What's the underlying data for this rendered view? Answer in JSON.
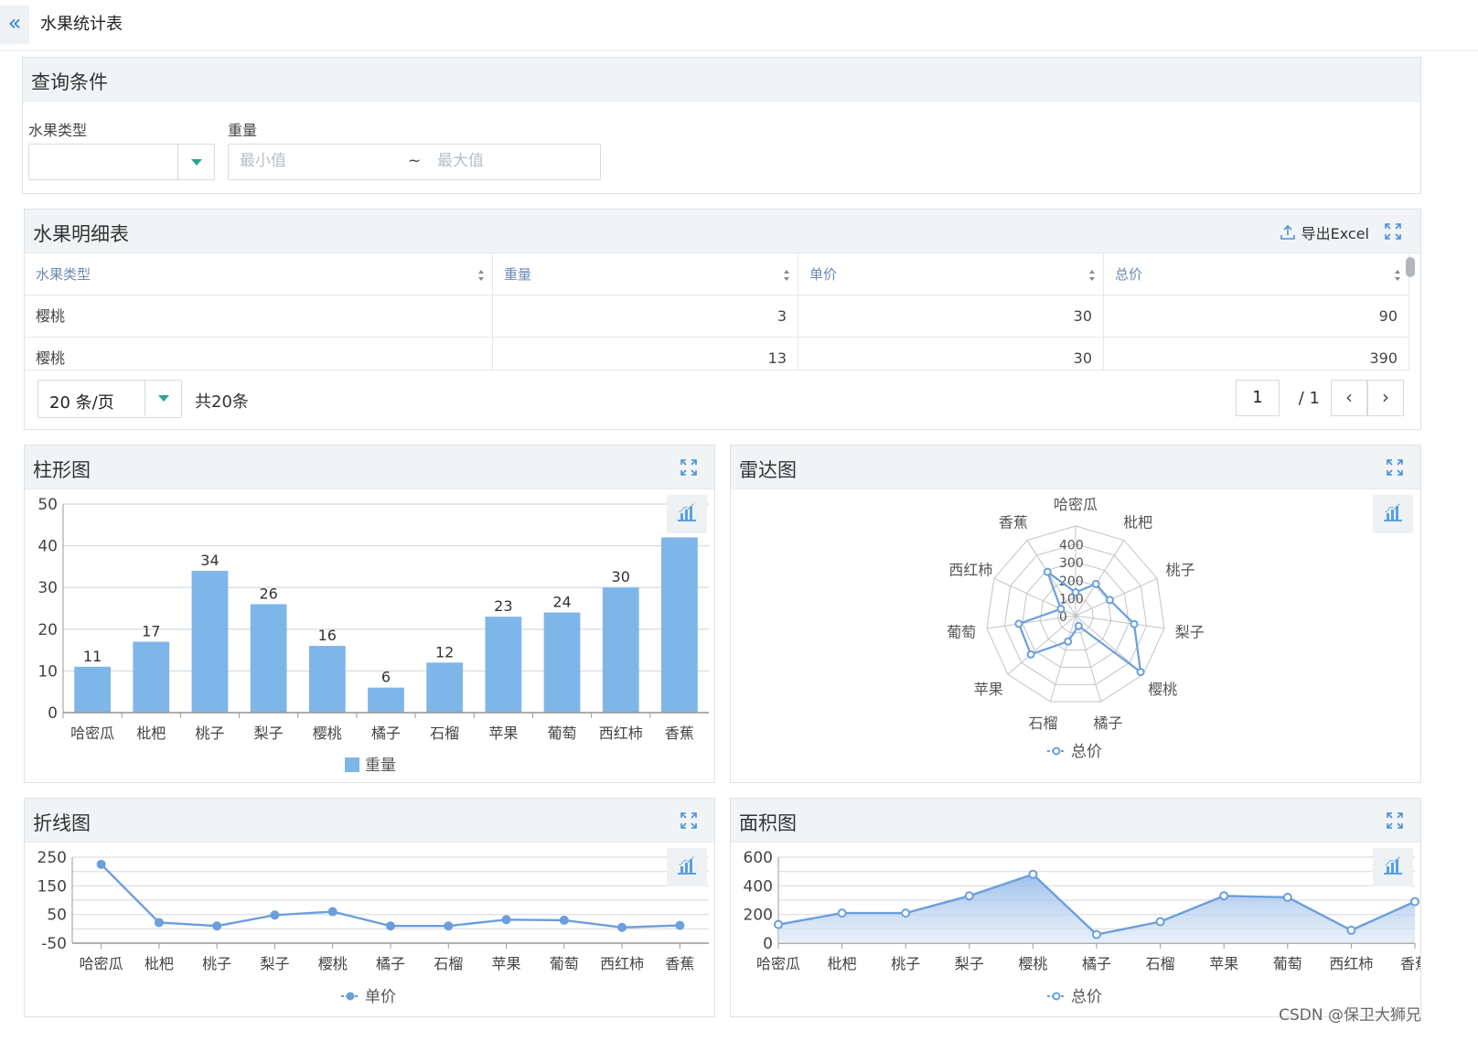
{
  "header": {
    "collapse_icon": "double-chevron-left-icon",
    "title": "水果统计表"
  },
  "query": {
    "title": "查询条件",
    "fruit_type_label": "水果类型",
    "fruit_type_value": "",
    "weight_label": "重量",
    "min_placeholder": "最小值",
    "range_separator": "~",
    "max_placeholder": "最大值"
  },
  "detail": {
    "title": "水果明细表",
    "export_label": "导出Excel",
    "columns": [
      "水果类型",
      "重量",
      "单价",
      "总价"
    ],
    "rows": [
      [
        "樱桃",
        "3",
        "30",
        "90"
      ],
      [
        "樱桃",
        "13",
        "30",
        "390"
      ]
    ],
    "page_size": "20 条/页",
    "total": "共20条",
    "current_page": "1",
    "total_pages": "/ 1"
  },
  "colors": {
    "primary": "#7eb6ea",
    "line": "#6a9fdc",
    "accent": "#2aa391",
    "grid": "#d9dde1"
  },
  "chart_data": [
    {
      "id": "bar",
      "type": "bar",
      "title": "柱形图",
      "categories": [
        "哈密瓜",
        "枇杷",
        "桃子",
        "梨子",
        "樱桃",
        "橘子",
        "石榴",
        "苹果",
        "葡萄",
        "西红柿",
        "香蕉"
      ],
      "series": [
        {
          "name": "重量",
          "values": [
            11,
            17,
            34,
            26,
            16,
            6,
            12,
            23,
            24,
            30,
            42
          ]
        }
      ],
      "yticks": [
        0,
        10,
        20,
        30,
        40,
        50
      ],
      "ylim": [
        0,
        50
      ],
      "legend": "bottom"
    },
    {
      "id": "radar",
      "type": "radar",
      "title": "雷达图",
      "indicators": [
        "哈密瓜",
        "枇杷",
        "桃子",
        "梨子",
        "樱桃",
        "橘子",
        "石榴",
        "苹果",
        "葡萄",
        "西红柿",
        "香蕉"
      ],
      "rticks": [
        "0",
        "100",
        "200",
        "300",
        "400"
      ],
      "rmax": 500,
      "series": [
        {
          "name": "总价",
          "values": [
            130,
            210,
            210,
            330,
            480,
            60,
            150,
            330,
            320,
            90,
            290
          ]
        }
      ],
      "legend": "bottom"
    },
    {
      "id": "line",
      "type": "line",
      "title": "折线图",
      "categories": [
        "哈密瓜",
        "枇杷",
        "桃子",
        "梨子",
        "樱桃",
        "橘子",
        "石榴",
        "苹果",
        "葡萄",
        "西红柿",
        "香蕉"
      ],
      "series": [
        {
          "name": "单价",
          "values": [
            225,
            22,
            10,
            48,
            60,
            10,
            10,
            32,
            30,
            5,
            12
          ]
        }
      ],
      "yticks": [
        "-50",
        "50",
        "150",
        "250"
      ],
      "ylim": [
        -50,
        250
      ],
      "legend": "bottom"
    },
    {
      "id": "area",
      "type": "area",
      "title": "面积图",
      "categories": [
        "哈密瓜",
        "枇杷",
        "桃子",
        "梨子",
        "樱桃",
        "橘子",
        "石榴",
        "苹果",
        "葡萄",
        "西红柿",
        "香蕉"
      ],
      "series": [
        {
          "name": "总价",
          "values": [
            130,
            210,
            210,
            330,
            480,
            60,
            150,
            330,
            320,
            90,
            290
          ]
        }
      ],
      "yticks": [
        "0",
        "200",
        "400",
        "600"
      ],
      "ylim": [
        0,
        600
      ],
      "legend": "bottom"
    }
  ],
  "watermark": "CSDN @保卫大狮兄"
}
